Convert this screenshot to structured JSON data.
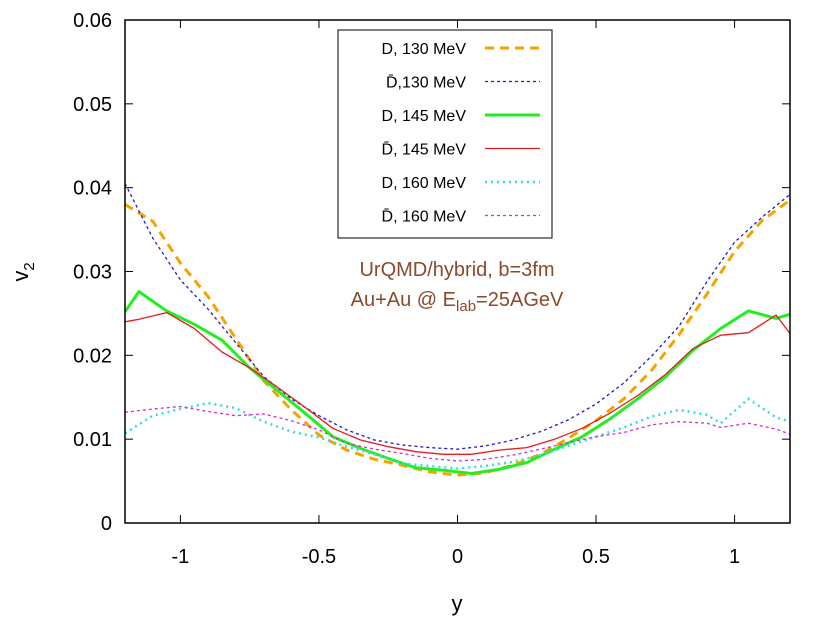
{
  "chart_data": {
    "type": "line",
    "title": "",
    "xlabel": "y",
    "ylabel": "v",
    "ylabel_sub": "2",
    "xlim": [
      -1.2,
      1.2
    ],
    "ylim": [
      0,
      0.06
    ],
    "xticks": [
      -1,
      -0.5,
      0,
      0.5,
      1
    ],
    "xtick_labels": [
      "-1",
      "-0.5",
      "0",
      "0.5",
      "1"
    ],
    "yticks": [
      0,
      0.01,
      0.02,
      0.03,
      0.04,
      0.05,
      0.06
    ],
    "ytick_labels": [
      "0",
      "0.01",
      "0.02",
      "0.03",
      "0.04",
      "0.05",
      "0.06"
    ],
    "grid": false,
    "legend_position": "top-center",
    "annotation": {
      "line1": "UrQMD/hybrid, b=3fm",
      "line2_prefix": "Au+Au @ E",
      "line2_sub": "lab",
      "line2_suffix": "=25AGeV",
      "color": "#8b4a2b"
    },
    "series": [
      {
        "name": "D, 130 MeV",
        "color": "#f5a300",
        "dash": "dashed-thick",
        "x": [
          -1.2,
          -1.1,
          -1.0,
          -0.9,
          -0.8,
          -0.7,
          -0.6,
          -0.5,
          -0.4,
          -0.3,
          -0.2,
          -0.1,
          0.0,
          0.1,
          0.2,
          0.3,
          0.4,
          0.5,
          0.6,
          0.7,
          0.8,
          0.9,
          1.0,
          1.1,
          1.2
        ],
        "y": [
          0.038,
          0.036,
          0.031,
          0.027,
          0.022,
          0.017,
          0.0135,
          0.0105,
          0.0087,
          0.0076,
          0.0069,
          0.0061,
          0.0057,
          0.006,
          0.0069,
          0.0082,
          0.0101,
          0.0122,
          0.0148,
          0.0182,
          0.0225,
          0.0273,
          0.0324,
          0.0361,
          0.0385
        ]
      },
      {
        "name": "D̄,130 MeV",
        "color": "#1a1acc",
        "dash": "dotted",
        "x": [
          -1.2,
          -1.1,
          -1.0,
          -0.9,
          -0.8,
          -0.7,
          -0.6,
          -0.5,
          -0.4,
          -0.3,
          -0.2,
          -0.1,
          0.0,
          0.1,
          0.2,
          0.3,
          0.4,
          0.5,
          0.6,
          0.7,
          0.8,
          0.9,
          1.0,
          1.1,
          1.2
        ],
        "y": [
          0.0405,
          0.034,
          0.029,
          0.0255,
          0.0215,
          0.0175,
          0.0148,
          0.0128,
          0.0111,
          0.0099,
          0.0093,
          0.009,
          0.0088,
          0.0092,
          0.0099,
          0.0109,
          0.0123,
          0.0142,
          0.0167,
          0.0199,
          0.0235,
          0.0288,
          0.0335,
          0.0365,
          0.0392
        ]
      },
      {
        "name": "D, 145 MeV",
        "color": "#22ee22",
        "dash": "solid-thick",
        "x": [
          -1.2,
          -1.15,
          -1.05,
          -0.95,
          -0.85,
          -0.75,
          -0.65,
          -0.55,
          -0.45,
          -0.35,
          -0.25,
          -0.15,
          -0.05,
          0.05,
          0.15,
          0.25,
          0.35,
          0.45,
          0.55,
          0.65,
          0.75,
          0.85,
          0.95,
          1.05,
          1.15,
          1.2
        ],
        "y": [
          0.0252,
          0.0276,
          0.0253,
          0.0237,
          0.0218,
          0.0185,
          0.0158,
          0.0131,
          0.0103,
          0.0089,
          0.0077,
          0.0066,
          0.0063,
          0.0059,
          0.0064,
          0.0072,
          0.0088,
          0.0103,
          0.0124,
          0.0148,
          0.0174,
          0.0206,
          0.0232,
          0.0253,
          0.0244,
          0.0249
        ]
      },
      {
        "name": "D̄, 145 MeV",
        "color": "#e02020",
        "dash": "solid",
        "x": [
          -1.2,
          -1.15,
          -1.05,
          -0.95,
          -0.85,
          -0.75,
          -0.65,
          -0.55,
          -0.45,
          -0.35,
          -0.25,
          -0.15,
          -0.05,
          0.05,
          0.15,
          0.25,
          0.35,
          0.45,
          0.55,
          0.65,
          0.75,
          0.85,
          0.95,
          1.05,
          1.15,
          1.2
        ],
        "y": [
          0.024,
          0.0243,
          0.0251,
          0.0232,
          0.0204,
          0.0185,
          0.0162,
          0.0138,
          0.0113,
          0.0099,
          0.0091,
          0.0085,
          0.0082,
          0.0082,
          0.0087,
          0.009,
          0.01,
          0.0113,
          0.0131,
          0.0152,
          0.0177,
          0.0208,
          0.0224,
          0.0227,
          0.0248,
          0.0226
        ]
      },
      {
        "name": "D, 160 MeV",
        "color": "#33dddd",
        "dash": "dotted-thick",
        "x": [
          -1.2,
          -1.1,
          -1.0,
          -0.9,
          -0.8,
          -0.7,
          -0.6,
          -0.5,
          -0.4,
          -0.3,
          -0.2,
          -0.1,
          0.0,
          0.1,
          0.2,
          0.3,
          0.4,
          0.5,
          0.6,
          0.7,
          0.8,
          0.9,
          0.95,
          1.05,
          1.15,
          1.2
        ],
        "y": [
          0.0107,
          0.0128,
          0.0136,
          0.0143,
          0.0137,
          0.0121,
          0.0109,
          0.0102,
          0.0091,
          0.0082,
          0.0071,
          0.0068,
          0.0065,
          0.0068,
          0.0073,
          0.0081,
          0.0092,
          0.0103,
          0.0114,
          0.0127,
          0.0135,
          0.0129,
          0.0119,
          0.0148,
          0.0126,
          0.0121
        ]
      },
      {
        "name": "D̄, 160 MeV",
        "color": "#d030d0",
        "dash": "dotted",
        "x": [
          -1.2,
          -1.1,
          -1.0,
          -0.9,
          -0.8,
          -0.7,
          -0.6,
          -0.5,
          -0.4,
          -0.3,
          -0.2,
          -0.1,
          0.0,
          0.1,
          0.2,
          0.3,
          0.4,
          0.5,
          0.6,
          0.7,
          0.8,
          0.9,
          0.95,
          1.05,
          1.15,
          1.2
        ],
        "y": [
          0.0132,
          0.0136,
          0.0139,
          0.0133,
          0.0128,
          0.013,
          0.0122,
          0.0111,
          0.0095,
          0.0088,
          0.0083,
          0.0077,
          0.0074,
          0.0076,
          0.0081,
          0.0088,
          0.0096,
          0.0103,
          0.0108,
          0.0117,
          0.0121,
          0.0119,
          0.0114,
          0.0119,
          0.0112,
          0.0106
        ]
      }
    ]
  }
}
